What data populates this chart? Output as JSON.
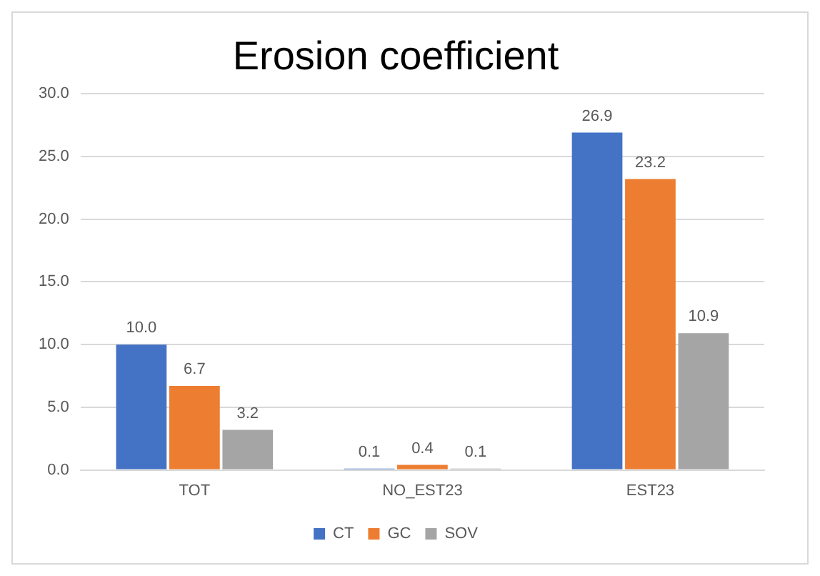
{
  "chart_data": {
    "type": "bar",
    "title": "Erosion coefficient",
    "categories": [
      "TOT",
      "NO_EST23",
      "EST23"
    ],
    "series": [
      {
        "name": "CT",
        "color": "#4472c4",
        "values": [
          10.0,
          0.1,
          26.9
        ],
        "value_labels": [
          "10.0",
          "0.1",
          "26.9"
        ]
      },
      {
        "name": "GC",
        "color": "#ed7d31",
        "values": [
          6.7,
          0.4,
          23.2
        ],
        "value_labels": [
          "6.7",
          "0.4",
          "23.2"
        ]
      },
      {
        "name": "SOV",
        "color": "#a5a5a5",
        "values": [
          3.2,
          0.1,
          10.9
        ],
        "value_labels": [
          "3.2",
          "0.1",
          "10.9"
        ]
      }
    ],
    "ylim": [
      0,
      30
    ],
    "yticks": [
      {
        "value": 0,
        "label": "0.0"
      },
      {
        "value": 5,
        "label": "5.0"
      },
      {
        "value": 10,
        "label": "10.0"
      },
      {
        "value": 15,
        "label": "15.0"
      },
      {
        "value": 20,
        "label": "20.0"
      },
      {
        "value": 25,
        "label": "25.0"
      },
      {
        "value": 30,
        "label": "30.0"
      }
    ],
    "grid": "y",
    "legend": "bottom"
  }
}
